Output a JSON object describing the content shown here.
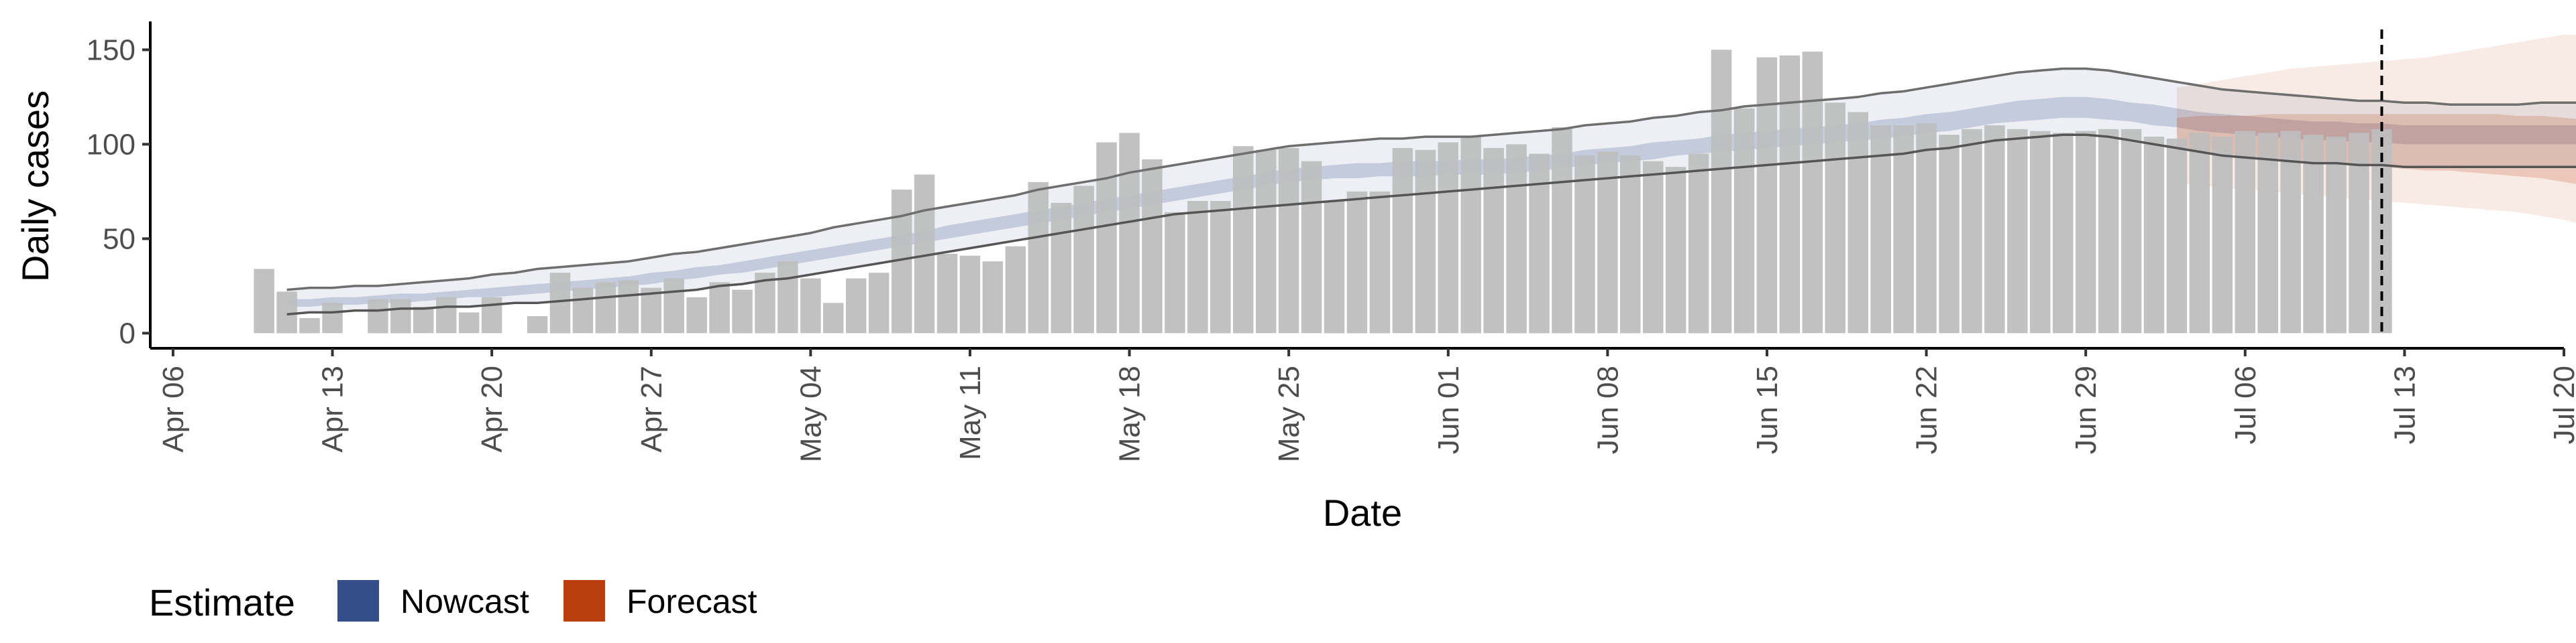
{
  "chart_data": {
    "type": "bar",
    "xlabel": "Date",
    "ylabel": "Daily cases",
    "ylim": [
      -8,
      165
    ],
    "xlim": [
      "2020-04-05",
      "2020-07-20"
    ],
    "y_ticks": [
      0,
      50,
      100,
      150
    ],
    "x_ticks": [
      {
        "date": "2020-04-06",
        "label": "Apr 06"
      },
      {
        "date": "2020-04-13",
        "label": "Apr 13"
      },
      {
        "date": "2020-04-20",
        "label": "Apr 20"
      },
      {
        "date": "2020-04-27",
        "label": "Apr 27"
      },
      {
        "date": "2020-05-04",
        "label": "May 04"
      },
      {
        "date": "2020-05-11",
        "label": "May 11"
      },
      {
        "date": "2020-05-18",
        "label": "May 18"
      },
      {
        "date": "2020-05-25",
        "label": "May 25"
      },
      {
        "date": "2020-06-01",
        "label": "Jun 01"
      },
      {
        "date": "2020-06-08",
        "label": "Jun 08"
      },
      {
        "date": "2020-06-15",
        "label": "Jun 15"
      },
      {
        "date": "2020-06-22",
        "label": "Jun 22"
      },
      {
        "date": "2020-06-29",
        "label": "Jun 29"
      },
      {
        "date": "2020-07-06",
        "label": "Jul 06"
      },
      {
        "date": "2020-07-13",
        "label": "Jul 13"
      },
      {
        "date": "2020-07-20",
        "label": "Jul 20"
      }
    ],
    "grid": false,
    "legend": {
      "title": "Estimate",
      "placement": "bottom-left",
      "entries": [
        {
          "label": "Nowcast",
          "color": "#344e89"
        },
        {
          "label": "Forecast",
          "color": "#b83e0c"
        }
      ]
    },
    "cases": {
      "start_date": "2020-04-10",
      "color": "#bebebe",
      "values": [
        34,
        22,
        8,
        16,
        0,
        18,
        18,
        14,
        19,
        11,
        19,
        0,
        9,
        32,
        24,
        27,
        28,
        24,
        29,
        19,
        27,
        23,
        32,
        38,
        29,
        16,
        29,
        32,
        76,
        84,
        42,
        41,
        38,
        46,
        80,
        69,
        78,
        101,
        106,
        92,
        64,
        70,
        70,
        99,
        97,
        98,
        91,
        70,
        75,
        75,
        98,
        97,
        101,
        104,
        98,
        100,
        95,
        109,
        94,
        96,
        94,
        91,
        88,
        95,
        150,
        119,
        146,
        147,
        149,
        122,
        117,
        110,
        110,
        111,
        105,
        108,
        110,
        108,
        107,
        106,
        107,
        108,
        108,
        104,
        103,
        106,
        104,
        107,
        106,
        107,
        105,
        104,
        106,
        108
      ]
    },
    "nowcast": {
      "start_date": "2020-04-11",
      "color": "#344e89",
      "outer_upper": [
        23,
        24,
        24,
        25,
        25,
        26,
        27,
        28,
        29,
        31,
        32,
        34,
        35,
        36,
        37,
        38,
        40,
        42,
        43,
        45,
        47,
        49,
        51,
        53,
        56,
        58,
        60,
        62,
        65,
        67,
        69,
        71,
        73,
        76,
        78,
        80,
        82,
        85,
        87,
        89,
        91,
        93,
        95,
        97,
        99,
        100,
        101,
        102,
        103,
        103,
        104,
        104,
        104,
        105,
        106,
        107,
        108,
        110,
        111,
        112,
        114,
        115,
        117,
        118,
        120,
        121,
        122,
        123,
        124,
        125,
        127,
        128,
        130,
        132,
        134,
        136,
        138,
        139,
        140,
        140,
        139,
        137,
        135,
        133,
        131,
        129,
        128,
        127,
        126,
        125,
        124,
        123,
        123,
        122,
        122,
        121,
        121,
        121,
        121,
        122,
        122,
        122,
        123,
        123,
        124,
        124
      ],
      "inner_upper": [
        18,
        18,
        19,
        19,
        20,
        21,
        21,
        22,
        23,
        24,
        25,
        26,
        27,
        28,
        29,
        30,
        32,
        33,
        35,
        36,
        38,
        40,
        42,
        44,
        46,
        48,
        50,
        52,
        54,
        57,
        59,
        61,
        63,
        65,
        67,
        69,
        71,
        73,
        75,
        77,
        79,
        81,
        83,
        85,
        87,
        88,
        89,
        90,
        90,
        91,
        91,
        91,
        92,
        92,
        93,
        94,
        95,
        97,
        98,
        99,
        101,
        102,
        103,
        105,
        106,
        107,
        108,
        109,
        110,
        111,
        113,
        114,
        116,
        117,
        119,
        121,
        123,
        124,
        125,
        125,
        124,
        122,
        121,
        119,
        117,
        116,
        115,
        114,
        113,
        112,
        112,
        111,
        111,
        110,
        110,
        110,
        110,
        110,
        110,
        110,
        110,
        110,
        111,
        111,
        111,
        111
      ],
      "inner_lower": [
        14,
        14,
        15,
        15,
        16,
        16,
        17,
        18,
        19,
        19,
        20,
        21,
        22,
        23,
        24,
        25,
        26,
        28,
        29,
        31,
        32,
        34,
        36,
        38,
        40,
        42,
        44,
        46,
        48,
        50,
        52,
        54,
        56,
        58,
        60,
        62,
        64,
        66,
        68,
        70,
        72,
        74,
        76,
        78,
        80,
        81,
        82,
        82,
        83,
        83,
        83,
        84,
        84,
        84,
        85,
        86,
        87,
        89,
        90,
        91,
        92,
        94,
        95,
        96,
        97,
        98,
        99,
        100,
        101,
        102,
        103,
        104,
        106,
        107,
        109,
        111,
        112,
        113,
        114,
        114,
        113,
        112,
        110,
        109,
        107,
        106,
        105,
        104,
        103,
        102,
        102,
        101,
        101,
        100,
        100,
        100,
        100,
        100,
        100,
        100,
        100,
        100,
        100,
        100,
        100,
        100
      ],
      "outer_lower": [
        10,
        11,
        11,
        12,
        12,
        13,
        13,
        14,
        14,
        15,
        16,
        16,
        17,
        18,
        19,
        20,
        21,
        22,
        23,
        25,
        26,
        28,
        29,
        31,
        33,
        35,
        37,
        39,
        41,
        43,
        45,
        47,
        49,
        51,
        53,
        55,
        57,
        59,
        61,
        63,
        64,
        65,
        66,
        67,
        68,
        69,
        70,
        71,
        72,
        73,
        74,
        75,
        76,
        77,
        78,
        79,
        80,
        81,
        82,
        83,
        84,
        85,
        86,
        87,
        88,
        89,
        90,
        91,
        92,
        93,
        94,
        95,
        97,
        98,
        100,
        102,
        103,
        104,
        105,
        105,
        104,
        102,
        100,
        98,
        96,
        94,
        93,
        92,
        91,
        90,
        90,
        89,
        89,
        88,
        88,
        88,
        88,
        88,
        88,
        88,
        88,
        88,
        88,
        88,
        88,
        88
      ]
    },
    "forecast": {
      "start_date": "2020-07-03",
      "color": "#b83e0c",
      "outer_upper": [
        130,
        132,
        134,
        136,
        138,
        140,
        141,
        142,
        143,
        144,
        145,
        146,
        148,
        150,
        152,
        154,
        156,
        158,
        158
      ],
      "inner_upper": [
        114,
        115,
        115,
        115,
        116,
        116,
        116,
        116,
        116,
        116,
        116,
        116,
        116,
        116,
        116,
        115,
        115,
        114,
        113
      ],
      "inner_lower": [
        97,
        96,
        95,
        94,
        93,
        92,
        91,
        90,
        89,
        88,
        87,
        86,
        86,
        85,
        84,
        83,
        82,
        80,
        78
      ],
      "outer_lower": [
        80,
        78,
        77,
        76,
        75,
        74,
        73,
        72,
        71,
        70,
        69,
        68,
        67,
        66,
        65,
        64,
        62,
        60,
        57
      ]
    },
    "vline": {
      "date": "2020-07-12",
      "style": "dashed"
    }
  }
}
